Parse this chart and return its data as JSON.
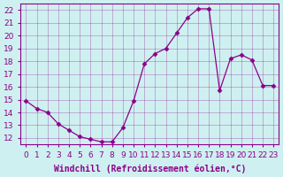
{
  "x": [
    0,
    1,
    2,
    3,
    4,
    5,
    6,
    7,
    8,
    9,
    10,
    11,
    12,
    13,
    14,
    15,
    16,
    17,
    18,
    19,
    20,
    21,
    22,
    23
  ],
  "y": [
    14.9,
    14.3,
    14.0,
    13.1,
    12.6,
    12.1,
    11.9,
    11.7,
    11.7,
    12.8,
    14.9,
    17.8,
    18.6,
    19.0,
    20.2,
    21.4,
    22.1,
    22.1,
    15.7,
    18.2,
    18.5,
    18.1,
    16.1,
    16.1
  ],
  "line_color": "#8B008B",
  "marker": "D",
  "marker_size": 2.5,
  "bg_color": "#cff0f0",
  "grid_color": "#8B008B",
  "xlabel": "Windchill (Refroidissement éolien,°C)",
  "ylim": [
    12,
    22
  ],
  "yticks": [
    12,
    13,
    14,
    15,
    16,
    17,
    18,
    19,
    20,
    21,
    22
  ],
  "xticks": [
    0,
    1,
    2,
    3,
    4,
    5,
    6,
    7,
    8,
    9,
    10,
    11,
    12,
    13,
    14,
    15,
    16,
    17,
    18,
    19,
    20,
    21,
    22,
    23
  ],
  "tick_color": "#8B008B",
  "label_fontsize": 7,
  "tick_fontsize": 6.5
}
